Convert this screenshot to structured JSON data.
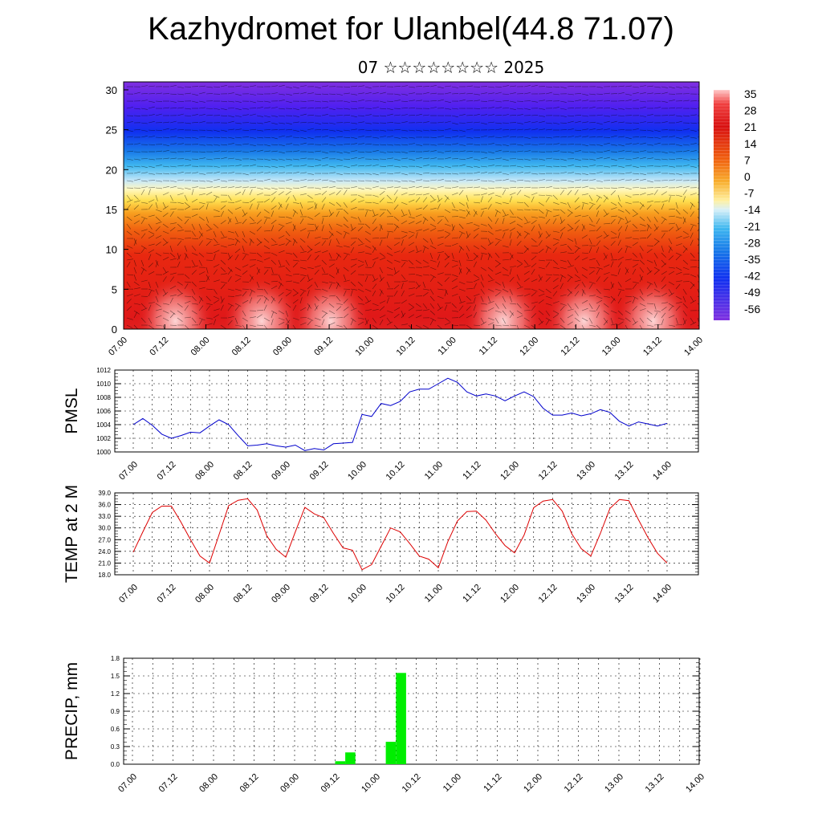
{
  "header": {
    "title": "Kazhydromet for Ulanbel(44.8 71.07)",
    "subtitle": "07 ☆☆☆☆☆☆☆☆ 2025"
  },
  "colors": {
    "pmsl_line": "#0000cc",
    "temp_line": "#dd0000",
    "precip_bar": "#00ee00",
    "colorbar": [
      "#ffc8c8",
      "#f03030",
      "#d81010",
      "#f06010",
      "#f8a020",
      "#ffe050",
      "#fff8c0",
      "#c8e8f8",
      "#40b8f0",
      "#1878e8",
      "#1030f0",
      "#6020f0",
      "#8030e0"
    ]
  },
  "chart_data": [
    {
      "type": "heatmap",
      "ylabel": "",
      "xlabel": "",
      "ylim": [
        0,
        31
      ],
      "yticks": [
        "0",
        "5",
        "10",
        "15",
        "20",
        "25",
        "30"
      ],
      "x_tick_labels": [
        "07.00",
        "07.12",
        "08.00",
        "08.12",
        "09.00",
        "09.12",
        "10.00",
        "10.12",
        "11.00",
        "11.12",
        "12.00",
        "12.12",
        "13.00",
        "13.12",
        "14.00"
      ],
      "colorbar_labels": [
        "35",
        "28",
        "21",
        "14",
        "7",
        "0",
        "-7",
        "-14",
        "-21",
        "-28",
        "-35",
        "-42",
        "-49",
        "-56"
      ],
      "overlay": "wind barbs"
    },
    {
      "type": "line",
      "ylabel": "PMSL",
      "ylim": [
        1000,
        1012
      ],
      "yticks": [
        "1000",
        "1002",
        "1004",
        "1006",
        "1008",
        "1010",
        "1012"
      ],
      "x_tick_labels": [
        "07.00",
        "07.12",
        "08.00",
        "08.12",
        "09.00",
        "09.12",
        "10.00",
        "10.12",
        "11.00",
        "11.12",
        "12.00",
        "12.12",
        "13.00",
        "13.12",
        "14.00"
      ],
      "series": [
        {
          "values": [
            1004.0,
            1004.9,
            1003.9,
            1002.6,
            1002.0,
            1002.4,
            1002.9,
            1002.8,
            1003.8,
            1004.7,
            1004.0,
            1002.4,
            1000.9,
            1001.0,
            1001.2,
            1000.9,
            1000.7,
            1001.0,
            1000.2,
            1000.5,
            1000.3,
            1001.2,
            1001.3,
            1001.4,
            1005.5,
            1005.2,
            1007.1,
            1006.8,
            1007.4,
            1008.8,
            1009.2,
            1009.2,
            1010.0,
            1010.8,
            1010.2,
            1008.8,
            1008.2,
            1008.5,
            1008.2,
            1007.5,
            1008.2,
            1008.8,
            1008.1,
            1006.4,
            1005.4,
            1005.4,
            1005.7,
            1005.3,
            1005.6,
            1006.2,
            1005.8,
            1004.5,
            1003.8,
            1004.4,
            1004.1,
            1003.8,
            1004.2
          ]
        }
      ]
    },
    {
      "type": "line",
      "ylabel": "TEMP at 2 M",
      "ylim": [
        18,
        39
      ],
      "yticks": [
        "18.0",
        "21.0",
        "24.0",
        "27.0",
        "30.0",
        "33.0",
        "36.0",
        "39.0"
      ],
      "x_tick_labels": [
        "07.00",
        "07.12",
        "08.00",
        "08.12",
        "09.00",
        "09.12",
        "10.00",
        "10.12",
        "11.00",
        "11.12",
        "12.00",
        "12.12",
        "13.00",
        "13.12",
        "14.00"
      ],
      "series": [
        {
          "values": [
            23.8,
            29.0,
            34.0,
            35.6,
            35.6,
            31.5,
            27.0,
            22.8,
            21.0,
            28.3,
            35.7,
            37.1,
            37.5,
            34.6,
            28.0,
            24.5,
            22.5,
            29.0,
            35.3,
            33.6,
            32.6,
            28.6,
            24.9,
            24.3,
            19.3,
            20.6,
            25.3,
            30.0,
            29.0,
            26.0,
            22.8,
            22.0,
            19.8,
            26.5,
            31.8,
            34.2,
            34.3,
            32.0,
            28.5,
            25.5,
            23.6,
            28.2,
            35.2,
            36.9,
            37.3,
            34.3,
            28.5,
            24.7,
            22.8,
            28.6,
            35.0,
            37.3,
            37.0,
            32.1,
            27.5,
            23.5,
            21.0
          ]
        }
      ]
    },
    {
      "type": "bar",
      "ylabel": "PRECIP, mm",
      "ylim": [
        0,
        1.8
      ],
      "yticks": [
        "0.0",
        "0.3",
        "0.6",
        "0.9",
        "1.2",
        "1.5",
        "1.8"
      ],
      "x_tick_labels": [
        "07.00",
        "07.12",
        "08.00",
        "08.12",
        "09.00",
        "09.12",
        "10.00",
        "10.12",
        "11.00",
        "11.12",
        "12.00",
        "12.12",
        "13.00",
        "13.12",
        "14.00"
      ],
      "series": [
        {
          "x_hours": [
            60,
            63,
            75,
            78
          ],
          "values": [
            0.05,
            0.2,
            0.38,
            1.55
          ]
        }
      ]
    }
  ]
}
